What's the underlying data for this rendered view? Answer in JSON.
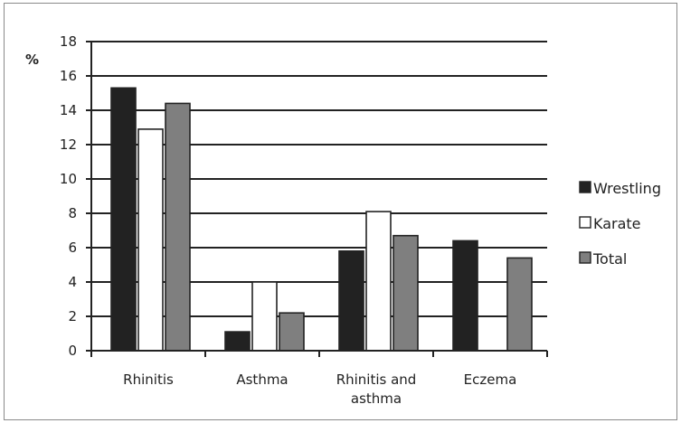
{
  "chart_data": {
    "type": "bar",
    "title": "",
    "ylabel": "%",
    "xlabel": "",
    "categories": [
      "Rhinitis",
      "Asthma",
      "Rhinitis and asthma",
      "Eczema"
    ],
    "category_lines": [
      [
        "Rhinitis"
      ],
      [
        "Asthma"
      ],
      [
        "Rhinitis and",
        "asthma"
      ],
      [
        "Eczema"
      ]
    ],
    "y_ticks": [
      "0",
      "2",
      "4",
      "6",
      "8",
      "10",
      "12",
      "14",
      "16",
      "18"
    ],
    "ylim": [
      0,
      18
    ],
    "grid": true,
    "legend_position": "right",
    "series": [
      {
        "name": "Wrestling",
        "values": [
          15.3,
          1.1,
          5.8,
          6.4
        ],
        "color": "#222222"
      },
      {
        "name": "Karate",
        "values": [
          12.9,
          4.0,
          8.1,
          0
        ],
        "color": "#ffffff"
      },
      {
        "name": "Total",
        "values": [
          14.4,
          2.2,
          6.7,
          5.4
        ],
        "color": "#7f7f7f"
      }
    ]
  }
}
